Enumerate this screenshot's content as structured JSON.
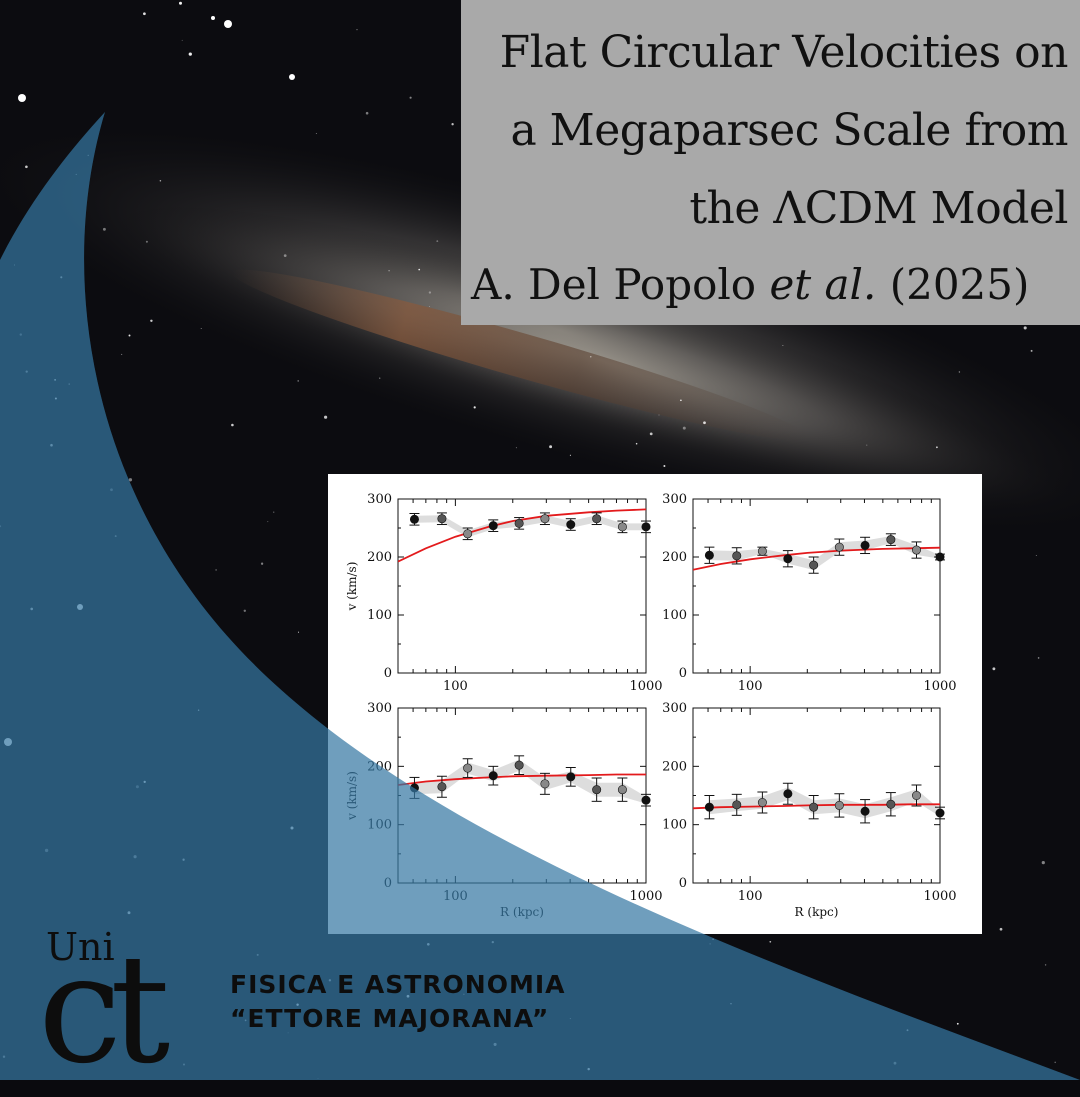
{
  "title": {
    "line1": "Flat Circular Velocities on",
    "line2": "a Megaparsec Scale from",
    "line3": "the ΛCDM Model",
    "author_main": "A. Del Popolo ",
    "author_etal": "et al.",
    "author_year": " (2025)"
  },
  "logo": {
    "uni": "Uni",
    "ct": "ct",
    "dept_line1": "FISICA E ASTRONOMIA",
    "dept_line2": "“ETTORE MAJORANA”"
  },
  "colors": {
    "title_box": "#a9a9a9",
    "wave": "#3f82ae",
    "model_curve": "#e31a1c",
    "band": "#d9d9d9",
    "points": "#111111"
  },
  "chart_data": [
    {
      "type": "scatter",
      "panel": "top-left",
      "xscale": "log",
      "xlim": [
        50,
        1000
      ],
      "ylim": [
        0,
        300
      ],
      "xticks": [
        "100",
        "1000"
      ],
      "yticks": [
        "0",
        "100",
        "200",
        "300"
      ],
      "xlabel": "",
      "ylabel": "v (km/s)",
      "x": [
        61,
        85,
        116,
        158,
        216,
        295,
        403,
        551,
        752,
        1000
      ],
      "y": [
        265,
        266,
        240,
        254,
        258,
        266,
        256,
        266,
        252,
        252
      ],
      "err": [
        10,
        10,
        10,
        10,
        10,
        10,
        10,
        10,
        10,
        10
      ],
      "curve": {
        "x": [
          50,
          70,
          100,
          150,
          200,
          300,
          500,
          700,
          1000
        ],
        "y": [
          192,
          215,
          235,
          252,
          262,
          271,
          277,
          280,
          282
        ]
      }
    },
    {
      "type": "scatter",
      "panel": "top-right",
      "xscale": "log",
      "xlim": [
        50,
        1000
      ],
      "ylim": [
        0,
        300
      ],
      "xticks": [
        "100",
        "1000"
      ],
      "yticks": [
        "0",
        "100",
        "200",
        "300"
      ],
      "xlabel": "",
      "ylabel": "",
      "x": [
        61,
        85,
        116,
        158,
        216,
        295,
        403,
        551,
        752,
        1000
      ],
      "y": [
        203,
        202,
        210,
        197,
        186,
        217,
        220,
        230,
        212,
        200
      ],
      "err": [
        14,
        14,
        7,
        14,
        14,
        14,
        14,
        10,
        14,
        5
      ],
      "curve": {
        "x": [
          50,
          70,
          100,
          150,
          200,
          300,
          500,
          700,
          1000
        ],
        "y": [
          178,
          188,
          196,
          203,
          207,
          211,
          214,
          215,
          216
        ]
      }
    },
    {
      "type": "scatter",
      "panel": "bottom-left",
      "xscale": "log",
      "xlim": [
        50,
        1000
      ],
      "ylim": [
        0,
        300
      ],
      "xticks": [
        "100",
        "1000"
      ],
      "yticks": [
        "0",
        "100",
        "200",
        "300"
      ],
      "xlabel": "R (kpc)",
      "ylabel": "v (km/s)",
      "x": [
        61,
        85,
        116,
        158,
        216,
        295,
        403,
        551,
        752,
        1000
      ],
      "y": [
        163,
        165,
        197,
        184,
        202,
        170,
        182,
        160,
        160,
        142
      ],
      "err": [
        18,
        18,
        16,
        16,
        16,
        18,
        16,
        20,
        20,
        10
      ],
      "curve": {
        "x": [
          50,
          70,
          100,
          150,
          200,
          300,
          500,
          700,
          1000
        ],
        "y": [
          168,
          174,
          178,
          181,
          183,
          184,
          185,
          186,
          186
        ]
      }
    },
    {
      "type": "scatter",
      "panel": "bottom-right",
      "xscale": "log",
      "xlim": [
        50,
        1000
      ],
      "ylim": [
        0,
        300
      ],
      "xticks": [
        "100",
        "1000"
      ],
      "yticks": [
        "0",
        "100",
        "200",
        "300"
      ],
      "xlabel": "R (kpc)",
      "ylabel": "",
      "x": [
        61,
        85,
        116,
        158,
        216,
        295,
        403,
        551,
        752,
        1000
      ],
      "y": [
        130,
        134,
        138,
        153,
        130,
        133,
        123,
        135,
        150,
        120
      ],
      "err": [
        20,
        18,
        18,
        18,
        20,
        20,
        20,
        20,
        18,
        10
      ],
      "curve": {
        "x": [
          50,
          70,
          100,
          150,
          200,
          300,
          500,
          700,
          1000
        ],
        "y": [
          128,
          130,
          131,
          132,
          133,
          134,
          134,
          135,
          135
        ]
      }
    }
  ]
}
